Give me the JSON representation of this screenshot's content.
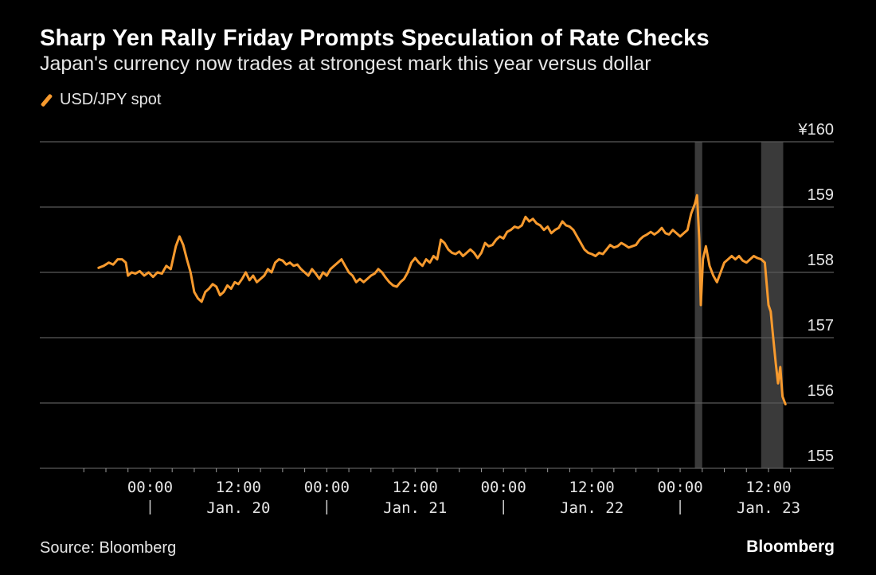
{
  "chart_data": {
    "type": "line",
    "title": "Sharp Yen Rally Friday Prompts Speculation of Rate Checks",
    "subtitle": "Japan's currency now trades at strongest mark this year versus dollar",
    "source": "Source: Bloomberg",
    "brand": "Bloomberg",
    "ylim": [
      155,
      160
    ],
    "y_ticks": [
      {
        "value": 160,
        "label": "¥160"
      },
      {
        "value": 159,
        "label": "159"
      },
      {
        "value": 158,
        "label": "158"
      },
      {
        "value": 157,
        "label": "157"
      },
      {
        "value": 156,
        "label": "156"
      },
      {
        "value": 155,
        "label": "155"
      }
    ],
    "x_unit": "hours from Jan. 19 00:00",
    "xlim": [
      -6,
      84
    ],
    "x_ticks": [
      {
        "value": 0,
        "label": "00:00"
      },
      {
        "value": 12,
        "label": "12:00"
      },
      {
        "value": 24,
        "label": "00:00"
      },
      {
        "value": 36,
        "label": "12:00"
      },
      {
        "value": 48,
        "label": "00:00"
      },
      {
        "value": 60,
        "label": "12:00"
      },
      {
        "value": 72,
        "label": "00:00"
      },
      {
        "value": 84,
        "label": "12:00"
      }
    ],
    "date_labels": [
      {
        "x": 12,
        "label": "Jan. 20"
      },
      {
        "x": 36,
        "label": "Jan. 21"
      },
      {
        "x": 60,
        "label": "Jan. 22"
      },
      {
        "x": 84,
        "label": "Jan. 23"
      }
    ],
    "day_dividers": [
      0,
      24,
      48,
      72
    ],
    "shaded_regions": [
      [
        74,
        75
      ],
      [
        83,
        86
      ]
    ],
    "colors": {
      "line": "#f79a2e",
      "grid": "#595959",
      "shade": "#3a3a3a"
    },
    "series": [
      {
        "name": "USD/JPY spot",
        "points": [
          [
            -7,
            158.07
          ],
          [
            -6.3,
            158.1
          ],
          [
            -5.6,
            158.15
          ],
          [
            -5,
            158.12
          ],
          [
            -4.4,
            158.2
          ],
          [
            -3.8,
            158.2
          ],
          [
            -3.3,
            158.15
          ],
          [
            -3,
            157.95
          ],
          [
            -2.5,
            158.0
          ],
          [
            -2,
            157.98
          ],
          [
            -1.4,
            158.02
          ],
          [
            -0.8,
            157.95
          ],
          [
            -0.2,
            158.0
          ],
          [
            0.4,
            157.93
          ],
          [
            1,
            158.0
          ],
          [
            1.6,
            157.98
          ],
          [
            2.2,
            158.1
          ],
          [
            2.8,
            158.05
          ],
          [
            3.5,
            158.4
          ],
          [
            4,
            158.55
          ],
          [
            4.5,
            158.42
          ],
          [
            5,
            158.2
          ],
          [
            5.5,
            158.0
          ],
          [
            6,
            157.7
          ],
          [
            6.5,
            157.6
          ],
          [
            7,
            157.55
          ],
          [
            7.5,
            157.7
          ],
          [
            8,
            157.75
          ],
          [
            8.5,
            157.82
          ],
          [
            9,
            157.78
          ],
          [
            9.5,
            157.65
          ],
          [
            10,
            157.7
          ],
          [
            10.5,
            157.8
          ],
          [
            11,
            157.75
          ],
          [
            11.5,
            157.85
          ],
          [
            12,
            157.82
          ],
          [
            12.5,
            157.9
          ],
          [
            13,
            158.0
          ],
          [
            13.5,
            157.88
          ],
          [
            14,
            157.95
          ],
          [
            14.5,
            157.85
          ],
          [
            15,
            157.9
          ],
          [
            15.5,
            157.95
          ],
          [
            16,
            158.05
          ],
          [
            16.5,
            158.0
          ],
          [
            17,
            158.15
          ],
          [
            17.5,
            158.2
          ],
          [
            18,
            158.18
          ],
          [
            18.5,
            158.12
          ],
          [
            19,
            158.15
          ],
          [
            19.5,
            158.1
          ],
          [
            20,
            158.12
          ],
          [
            20.5,
            158.05
          ],
          [
            21,
            158.0
          ],
          [
            21.5,
            157.95
          ],
          [
            22,
            158.05
          ],
          [
            22.5,
            157.98
          ],
          [
            23,
            157.9
          ],
          [
            23.5,
            158.0
          ],
          [
            24,
            157.95
          ],
          [
            24.5,
            158.05
          ],
          [
            25,
            158.1
          ],
          [
            25.5,
            158.15
          ],
          [
            26,
            158.2
          ],
          [
            26.5,
            158.1
          ],
          [
            27,
            158.0
          ],
          [
            27.5,
            157.95
          ],
          [
            28,
            157.85
          ],
          [
            28.5,
            157.9
          ],
          [
            29,
            157.85
          ],
          [
            29.5,
            157.9
          ],
          [
            30,
            157.95
          ],
          [
            30.5,
            157.98
          ],
          [
            31,
            158.05
          ],
          [
            31.5,
            158.0
          ],
          [
            32,
            157.92
          ],
          [
            32.5,
            157.85
          ],
          [
            33,
            157.8
          ],
          [
            33.5,
            157.78
          ],
          [
            34,
            157.85
          ],
          [
            34.5,
            157.9
          ],
          [
            35,
            158.0
          ],
          [
            35.5,
            158.15
          ],
          [
            36,
            158.22
          ],
          [
            36.5,
            158.15
          ],
          [
            37,
            158.1
          ],
          [
            37.5,
            158.2
          ],
          [
            38,
            158.15
          ],
          [
            38.5,
            158.25
          ],
          [
            39,
            158.2
          ],
          [
            39.5,
            158.5
          ],
          [
            40,
            158.45
          ],
          [
            40.5,
            158.35
          ],
          [
            41,
            158.3
          ],
          [
            41.5,
            158.28
          ],
          [
            42,
            158.32
          ],
          [
            42.5,
            158.25
          ],
          [
            43,
            158.3
          ],
          [
            43.5,
            158.35
          ],
          [
            44,
            158.3
          ],
          [
            44.5,
            158.22
          ],
          [
            45,
            158.3
          ],
          [
            45.5,
            158.45
          ],
          [
            46,
            158.4
          ],
          [
            46.5,
            158.42
          ],
          [
            47,
            158.5
          ],
          [
            47.5,
            158.55
          ],
          [
            48,
            158.52
          ],
          [
            48.5,
            158.62
          ],
          [
            49,
            158.65
          ],
          [
            49.5,
            158.7
          ],
          [
            50,
            158.68
          ],
          [
            50.5,
            158.72
          ],
          [
            51,
            158.85
          ],
          [
            51.5,
            158.78
          ],
          [
            52,
            158.82
          ],
          [
            52.5,
            158.75
          ],
          [
            53,
            158.72
          ],
          [
            53.5,
            158.65
          ],
          [
            54,
            158.7
          ],
          [
            54.5,
            158.6
          ],
          [
            55,
            158.65
          ],
          [
            55.5,
            158.68
          ],
          [
            56,
            158.78
          ],
          [
            56.5,
            158.72
          ],
          [
            57,
            158.7
          ],
          [
            57.5,
            158.65
          ],
          [
            58,
            158.55
          ],
          [
            58.5,
            158.45
          ],
          [
            59,
            158.35
          ],
          [
            59.5,
            158.3
          ],
          [
            60,
            158.28
          ],
          [
            60.5,
            158.25
          ],
          [
            61,
            158.3
          ],
          [
            61.5,
            158.28
          ],
          [
            62,
            158.35
          ],
          [
            62.5,
            158.42
          ],
          [
            63,
            158.38
          ],
          [
            63.5,
            158.4
          ],
          [
            64,
            158.45
          ],
          [
            64.5,
            158.42
          ],
          [
            65,
            158.38
          ],
          [
            65.5,
            158.4
          ],
          [
            66,
            158.42
          ],
          [
            66.5,
            158.5
          ],
          [
            67,
            158.55
          ],
          [
            67.5,
            158.58
          ],
          [
            68,
            158.62
          ],
          [
            68.5,
            158.58
          ],
          [
            69,
            158.62
          ],
          [
            69.5,
            158.68
          ],
          [
            70,
            158.6
          ],
          [
            70.5,
            158.58
          ],
          [
            71,
            158.65
          ],
          [
            71.5,
            158.6
          ],
          [
            72,
            158.55
          ],
          [
            72.5,
            158.6
          ],
          [
            73,
            158.65
          ],
          [
            73.5,
            158.9
          ],
          [
            74,
            159.05
          ],
          [
            74.3,
            159.18
          ],
          [
            74.6,
            158.5
          ],
          [
            74.8,
            157.5
          ],
          [
            75.1,
            158.2
          ],
          [
            75.5,
            158.4
          ],
          [
            76,
            158.1
          ],
          [
            76.5,
            157.95
          ],
          [
            77,
            157.85
          ],
          [
            77.5,
            158.0
          ],
          [
            78,
            158.15
          ],
          [
            78.5,
            158.2
          ],
          [
            79,
            158.25
          ],
          [
            79.5,
            158.2
          ],
          [
            80,
            158.25
          ],
          [
            80.5,
            158.18
          ],
          [
            81,
            158.15
          ],
          [
            81.5,
            158.2
          ],
          [
            82,
            158.25
          ],
          [
            82.5,
            158.22
          ],
          [
            83,
            158.2
          ],
          [
            83.5,
            158.15
          ],
          [
            84,
            157.5
          ],
          [
            84.3,
            157.4
          ],
          [
            84.6,
            157.05
          ],
          [
            85,
            156.6
          ],
          [
            85.3,
            156.3
          ],
          [
            85.6,
            156.55
          ],
          [
            85.9,
            156.1
          ],
          [
            86.3,
            155.98
          ]
        ]
      }
    ]
  }
}
